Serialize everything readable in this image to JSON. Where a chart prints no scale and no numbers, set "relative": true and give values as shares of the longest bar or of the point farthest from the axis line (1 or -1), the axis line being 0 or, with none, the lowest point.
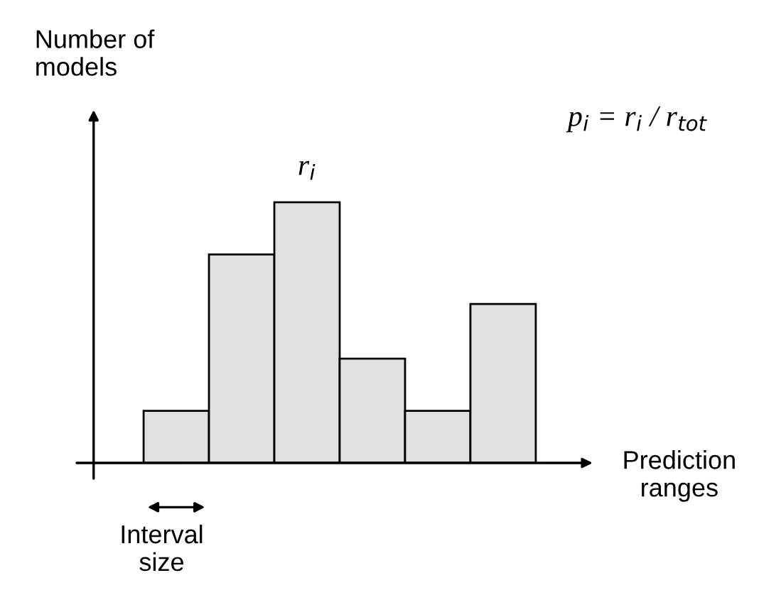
{
  "chart_data": {
    "type": "bar",
    "relative": true,
    "categories": [
      null,
      null,
      null,
      null,
      null,
      null
    ],
    "values": [
      0.2,
      0.8,
      1.0,
      0.4,
      0.2,
      0.61
    ],
    "color": "#e0e0e0",
    "xlabel": "Prediction\nranges",
    "ylabel": "Number of\nmodels",
    "annotations": [
      "r$_{i}$",
      "p$_{i}$ = r$_{i}$ / r$_{tot}$",
      "Interval\nsize"
    ],
    "grid": false
  }
}
